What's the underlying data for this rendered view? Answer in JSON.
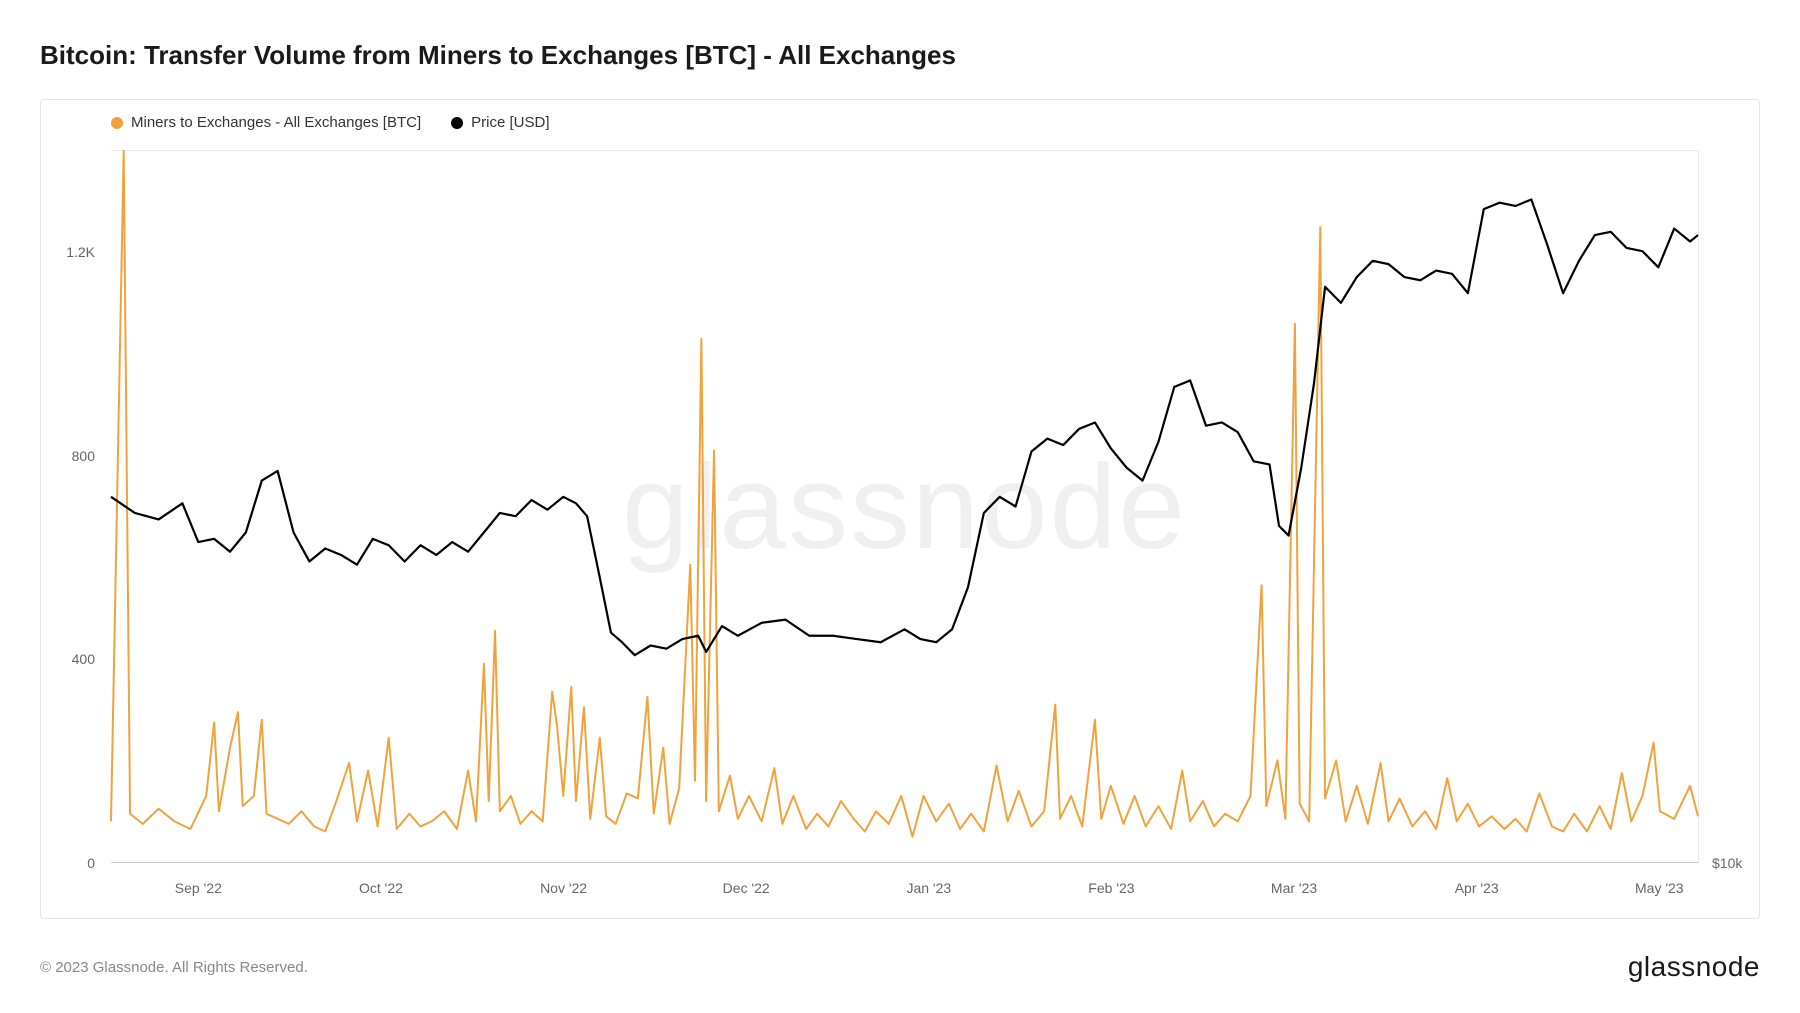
{
  "title": "Bitcoin: Transfer Volume from Miners to Exchanges [BTC] - All Exchanges",
  "watermark": "glassnode",
  "copyright": "© 2023 Glassnode. All Rights Reserved.",
  "brand": "glassnode",
  "legend": {
    "series1": {
      "label": "Miners to Exchanges - All Exchanges [BTC]",
      "color": "#f2a23c"
    },
    "series2": {
      "label": "Price [USD]",
      "color": "#000000"
    }
  },
  "chart": {
    "background_color": "#ffffff",
    "grid_color": "#e8e8e8",
    "border_color": "#e5e5e5",
    "y_axis_left": {
      "min": 0,
      "max": 1400,
      "ticks": [
        0,
        400,
        800,
        1200
      ],
      "labels": [
        "0",
        "400",
        "800",
        "1.2K"
      ],
      "fontsize": 14,
      "color": "#666666"
    },
    "y_axis_right": {
      "min": 10000,
      "max": 32000,
      "ticks": [
        10000
      ],
      "labels": [
        "$10k"
      ],
      "fontsize": 14,
      "color": "#666666"
    },
    "x_axis": {
      "ticks": [
        0.055,
        0.17,
        0.285,
        0.4,
        0.515,
        0.63,
        0.745,
        0.86,
        0.975
      ],
      "labels": [
        "Sep '22",
        "Oct '22",
        "Nov '22",
        "Dec '22",
        "Jan '23",
        "Feb '23",
        "Mar '23",
        "Apr '23",
        "May '23"
      ],
      "fontsize": 14,
      "color": "#666666"
    },
    "series_volume": {
      "color": "#f2a23c",
      "line_width": 2.0,
      "data": [
        [
          0.0,
          80
        ],
        [
          0.008,
          1400
        ],
        [
          0.012,
          95
        ],
        [
          0.02,
          75
        ],
        [
          0.03,
          105
        ],
        [
          0.04,
          80
        ],
        [
          0.05,
          65
        ],
        [
          0.06,
          130
        ],
        [
          0.065,
          275
        ],
        [
          0.068,
          100
        ],
        [
          0.075,
          225
        ],
        [
          0.08,
          295
        ],
        [
          0.083,
          110
        ],
        [
          0.09,
          130
        ],
        [
          0.095,
          280
        ],
        [
          0.098,
          95
        ],
        [
          0.105,
          85
        ],
        [
          0.112,
          75
        ],
        [
          0.12,
          100
        ],
        [
          0.128,
          70
        ],
        [
          0.135,
          60
        ],
        [
          0.142,
          120
        ],
        [
          0.15,
          195
        ],
        [
          0.155,
          80
        ],
        [
          0.162,
          180
        ],
        [
          0.168,
          70
        ],
        [
          0.175,
          245
        ],
        [
          0.18,
          65
        ],
        [
          0.188,
          95
        ],
        [
          0.195,
          70
        ],
        [
          0.202,
          80
        ],
        [
          0.21,
          100
        ],
        [
          0.218,
          65
        ],
        [
          0.225,
          180
        ],
        [
          0.23,
          80
        ],
        [
          0.235,
          390
        ],
        [
          0.238,
          120
        ],
        [
          0.242,
          455
        ],
        [
          0.245,
          100
        ],
        [
          0.252,
          130
        ],
        [
          0.258,
          75
        ],
        [
          0.265,
          100
        ],
        [
          0.272,
          80
        ],
        [
          0.278,
          335
        ],
        [
          0.281,
          270
        ],
        [
          0.285,
          130
        ],
        [
          0.29,
          345
        ],
        [
          0.293,
          120
        ],
        [
          0.298,
          305
        ],
        [
          0.302,
          85
        ],
        [
          0.308,
          245
        ],
        [
          0.312,
          90
        ],
        [
          0.318,
          75
        ],
        [
          0.325,
          135
        ],
        [
          0.332,
          125
        ],
        [
          0.338,
          325
        ],
        [
          0.342,
          95
        ],
        [
          0.348,
          225
        ],
        [
          0.352,
          75
        ],
        [
          0.358,
          145
        ],
        [
          0.365,
          585
        ],
        [
          0.368,
          160
        ],
        [
          0.372,
          1030
        ],
        [
          0.375,
          120
        ],
        [
          0.38,
          810
        ],
        [
          0.383,
          100
        ],
        [
          0.39,
          170
        ],
        [
          0.395,
          85
        ],
        [
          0.402,
          130
        ],
        [
          0.41,
          80
        ],
        [
          0.418,
          185
        ],
        [
          0.423,
          75
        ],
        [
          0.43,
          130
        ],
        [
          0.438,
          65
        ],
        [
          0.445,
          95
        ],
        [
          0.452,
          70
        ],
        [
          0.46,
          120
        ],
        [
          0.468,
          85
        ],
        [
          0.475,
          60
        ],
        [
          0.482,
          100
        ],
        [
          0.49,
          75
        ],
        [
          0.498,
          130
        ],
        [
          0.505,
          50
        ],
        [
          0.512,
          130
        ],
        [
          0.52,
          80
        ],
        [
          0.528,
          115
        ],
        [
          0.535,
          65
        ],
        [
          0.542,
          95
        ],
        [
          0.55,
          60
        ],
        [
          0.558,
          190
        ],
        [
          0.565,
          80
        ],
        [
          0.572,
          140
        ],
        [
          0.58,
          70
        ],
        [
          0.588,
          100
        ],
        [
          0.595,
          310
        ],
        [
          0.598,
          85
        ],
        [
          0.605,
          130
        ],
        [
          0.612,
          70
        ],
        [
          0.62,
          280
        ],
        [
          0.624,
          85
        ],
        [
          0.63,
          150
        ],
        [
          0.638,
          75
        ],
        [
          0.645,
          130
        ],
        [
          0.652,
          70
        ],
        [
          0.66,
          110
        ],
        [
          0.668,
          65
        ],
        [
          0.675,
          180
        ],
        [
          0.68,
          80
        ],
        [
          0.688,
          120
        ],
        [
          0.695,
          70
        ],
        [
          0.702,
          95
        ],
        [
          0.71,
          80
        ],
        [
          0.718,
          130
        ],
        [
          0.725,
          545
        ],
        [
          0.728,
          110
        ],
        [
          0.735,
          200
        ],
        [
          0.74,
          85
        ],
        [
          0.746,
          1060
        ],
        [
          0.749,
          115
        ],
        [
          0.755,
          80
        ],
        [
          0.762,
          1250
        ],
        [
          0.765,
          125
        ],
        [
          0.772,
          200
        ],
        [
          0.778,
          80
        ],
        [
          0.785,
          150
        ],
        [
          0.792,
          75
        ],
        [
          0.8,
          195
        ],
        [
          0.805,
          80
        ],
        [
          0.812,
          125
        ],
        [
          0.82,
          70
        ],
        [
          0.828,
          100
        ],
        [
          0.835,
          65
        ],
        [
          0.842,
          165
        ],
        [
          0.848,
          80
        ],
        [
          0.855,
          115
        ],
        [
          0.862,
          70
        ],
        [
          0.87,
          90
        ],
        [
          0.878,
          65
        ],
        [
          0.885,
          85
        ],
        [
          0.892,
          60
        ],
        [
          0.9,
          135
        ],
        [
          0.908,
          70
        ],
        [
          0.915,
          60
        ],
        [
          0.922,
          95
        ],
        [
          0.93,
          60
        ],
        [
          0.938,
          110
        ],
        [
          0.945,
          65
        ],
        [
          0.952,
          175
        ],
        [
          0.958,
          80
        ],
        [
          0.965,
          130
        ],
        [
          0.972,
          235
        ],
        [
          0.976,
          100
        ],
        [
          0.985,
          85
        ],
        [
          0.995,
          150
        ],
        [
          1.0,
          90
        ]
      ]
    },
    "series_price": {
      "color": "#000000",
      "line_width": 2.2,
      "data": [
        [
          0.0,
          21300
        ],
        [
          0.015,
          20800
        ],
        [
          0.03,
          20600
        ],
        [
          0.045,
          21100
        ],
        [
          0.055,
          19900
        ],
        [
          0.065,
          20000
        ],
        [
          0.075,
          19600
        ],
        [
          0.085,
          20200
        ],
        [
          0.095,
          21800
        ],
        [
          0.105,
          22100
        ],
        [
          0.115,
          20200
        ],
        [
          0.125,
          19300
        ],
        [
          0.135,
          19700
        ],
        [
          0.145,
          19500
        ],
        [
          0.155,
          19200
        ],
        [
          0.165,
          20000
        ],
        [
          0.175,
          19800
        ],
        [
          0.185,
          19300
        ],
        [
          0.195,
          19800
        ],
        [
          0.205,
          19500
        ],
        [
          0.215,
          19900
        ],
        [
          0.225,
          19600
        ],
        [
          0.235,
          20200
        ],
        [
          0.245,
          20800
        ],
        [
          0.255,
          20700
        ],
        [
          0.265,
          21200
        ],
        [
          0.275,
          20900
        ],
        [
          0.285,
          21300
        ],
        [
          0.293,
          21100
        ],
        [
          0.3,
          20700
        ],
        [
          0.308,
          18800
        ],
        [
          0.315,
          17100
        ],
        [
          0.322,
          16800
        ],
        [
          0.33,
          16400
        ],
        [
          0.34,
          16700
        ],
        [
          0.35,
          16600
        ],
        [
          0.36,
          16900
        ],
        [
          0.37,
          17000
        ],
        [
          0.375,
          16500
        ],
        [
          0.385,
          17300
        ],
        [
          0.395,
          17000
        ],
        [
          0.41,
          17400
        ],
        [
          0.425,
          17500
        ],
        [
          0.44,
          17000
        ],
        [
          0.455,
          17000
        ],
        [
          0.47,
          16900
        ],
        [
          0.485,
          16800
        ],
        [
          0.5,
          17200
        ],
        [
          0.51,
          16900
        ],
        [
          0.52,
          16800
        ],
        [
          0.53,
          17200
        ],
        [
          0.54,
          18500
        ],
        [
          0.55,
          20800
        ],
        [
          0.56,
          21300
        ],
        [
          0.57,
          21000
        ],
        [
          0.58,
          22700
        ],
        [
          0.59,
          23100
        ],
        [
          0.6,
          22900
        ],
        [
          0.61,
          23400
        ],
        [
          0.62,
          23600
        ],
        [
          0.63,
          22800
        ],
        [
          0.64,
          22200
        ],
        [
          0.65,
          21800
        ],
        [
          0.66,
          23000
        ],
        [
          0.67,
          24700
        ],
        [
          0.68,
          24900
        ],
        [
          0.69,
          23500
        ],
        [
          0.7,
          23600
        ],
        [
          0.71,
          23300
        ],
        [
          0.72,
          22400
        ],
        [
          0.73,
          22300
        ],
        [
          0.736,
          20400
        ],
        [
          0.742,
          20100
        ],
        [
          0.75,
          22200
        ],
        [
          0.758,
          24800
        ],
        [
          0.765,
          27800
        ],
        [
          0.775,
          27300
        ],
        [
          0.785,
          28100
        ],
        [
          0.795,
          28600
        ],
        [
          0.805,
          28500
        ],
        [
          0.815,
          28100
        ],
        [
          0.825,
          28000
        ],
        [
          0.835,
          28300
        ],
        [
          0.845,
          28200
        ],
        [
          0.855,
          27600
        ],
        [
          0.865,
          30200
        ],
        [
          0.875,
          30400
        ],
        [
          0.885,
          30300
        ],
        [
          0.895,
          30500
        ],
        [
          0.905,
          29100
        ],
        [
          0.915,
          27600
        ],
        [
          0.925,
          28600
        ],
        [
          0.935,
          29400
        ],
        [
          0.945,
          29500
        ],
        [
          0.955,
          29000
        ],
        [
          0.965,
          28900
        ],
        [
          0.975,
          28400
        ],
        [
          0.985,
          29600
        ],
        [
          0.995,
          29200
        ],
        [
          1.0,
          29400
        ]
      ]
    }
  }
}
